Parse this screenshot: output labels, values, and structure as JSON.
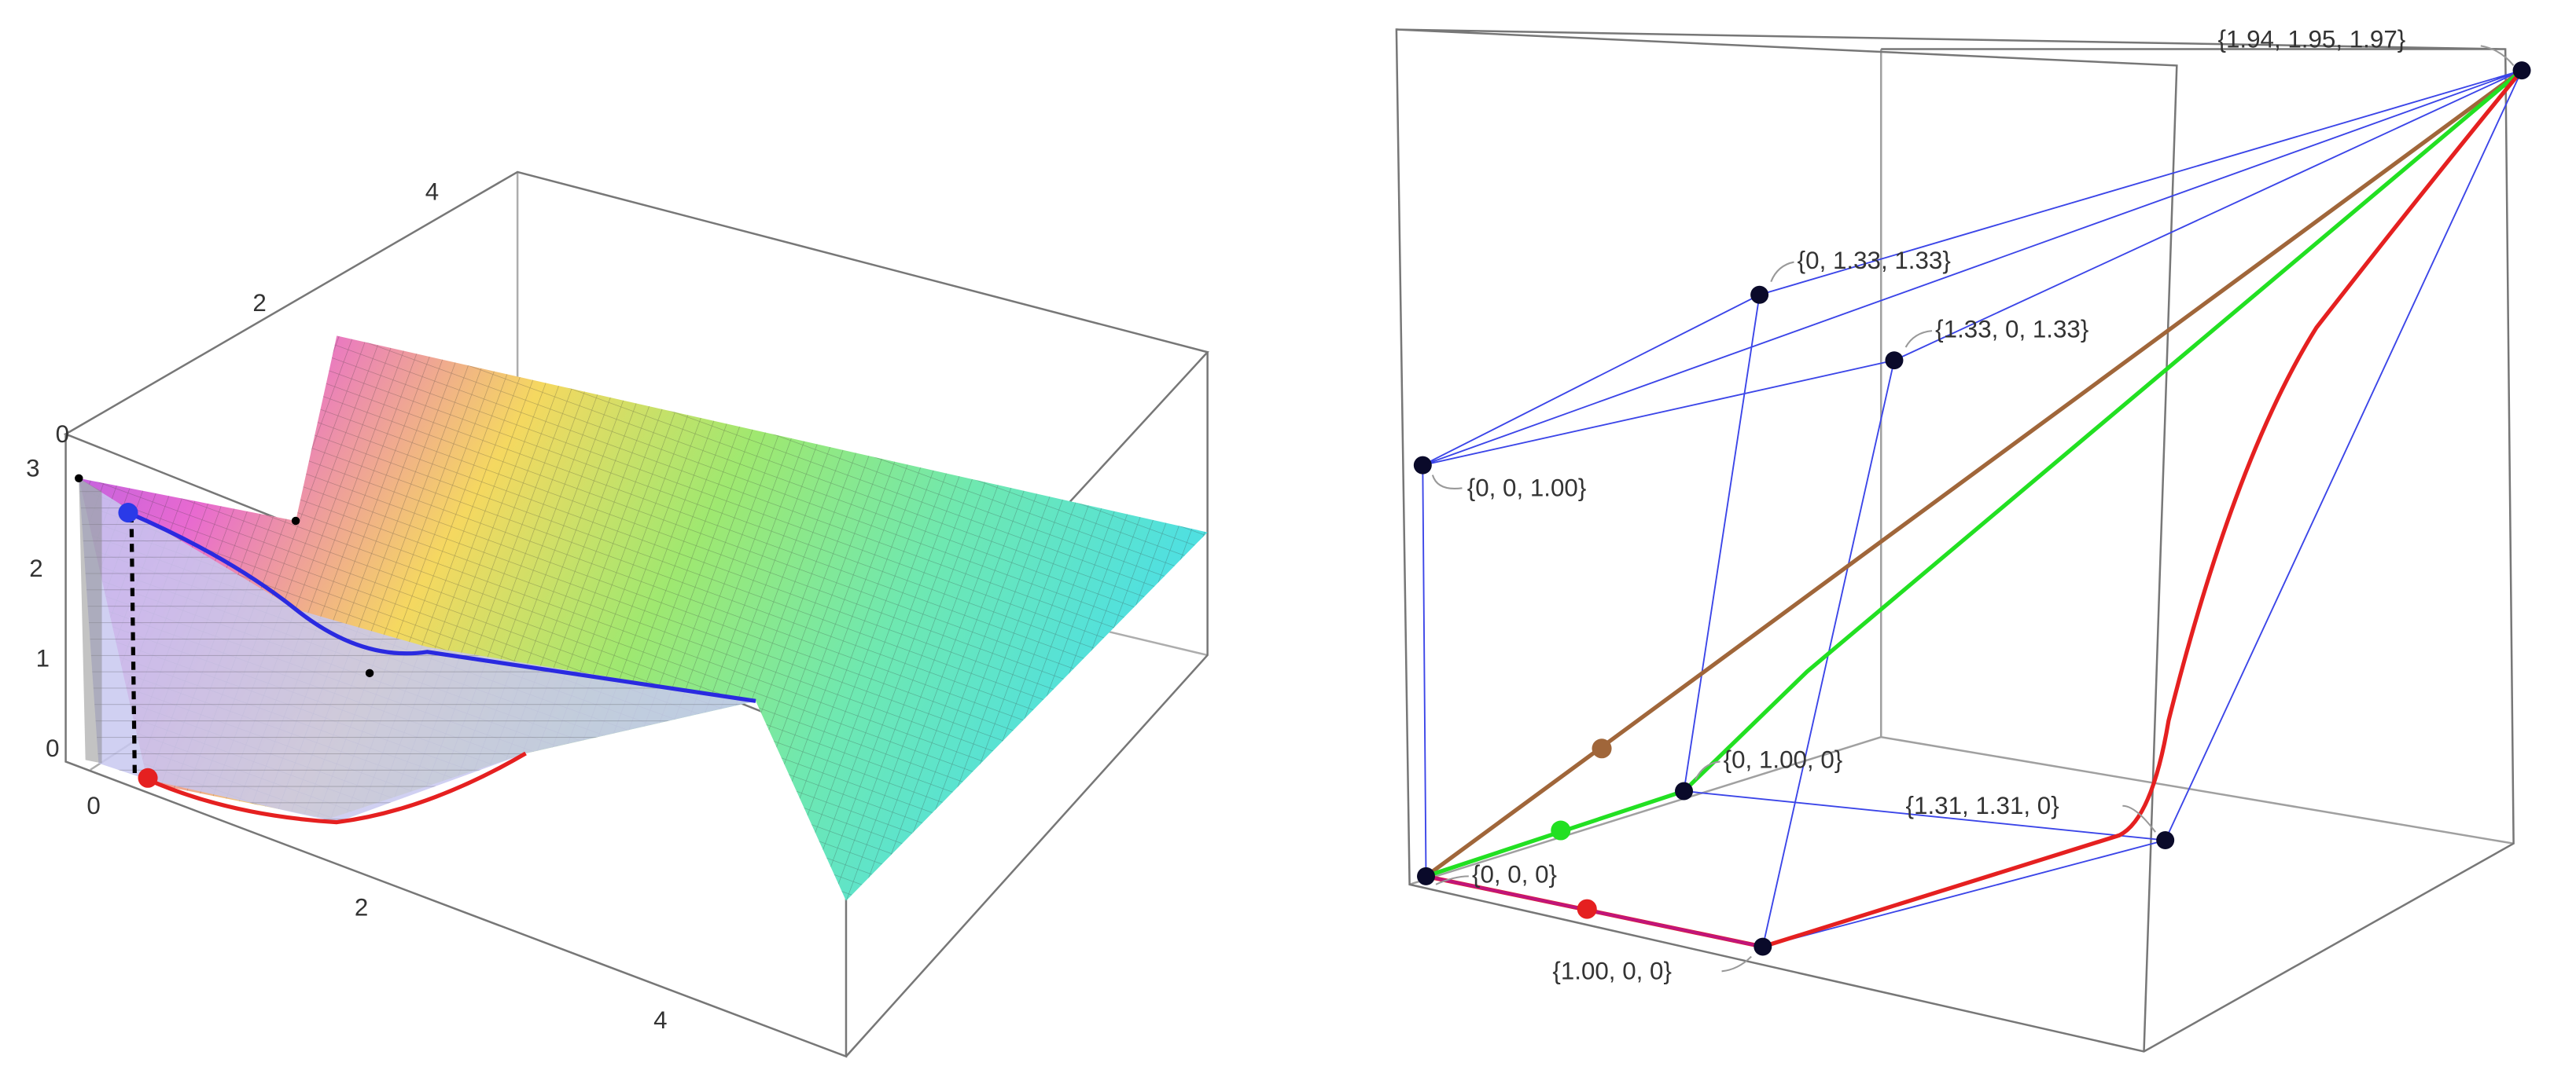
{
  "left_plot": {
    "top_axis_ticks": [
      "4",
      "2",
      "0"
    ],
    "vertical_axis_ticks": [
      "3",
      "2",
      "1",
      "0"
    ],
    "bottom_axis_ticks": [
      "0",
      "2",
      "4"
    ]
  },
  "right_plot": {
    "point_labels": [
      "{1.94, 1.95, 1.97}",
      "{0, 1.33, 1.33}",
      "{1.33, 0, 1.33}",
      "{0, 0, 1.00}",
      "{0, 1.00, 0}",
      "{1.31, 1.31, 0}",
      "{0, 0, 0}",
      "{1.00, 0, 0}"
    ]
  }
}
